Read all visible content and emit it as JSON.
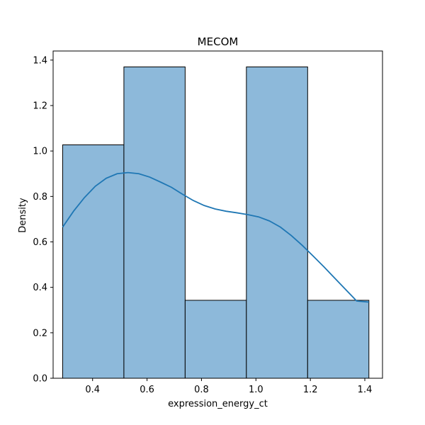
{
  "chart_data": {
    "type": "bar",
    "title": "MECOM",
    "xlabel": "expression_energy_ct",
    "ylabel": "Density",
    "xlim": [
      0.255,
      1.465
    ],
    "ylim": [
      0,
      1.44
    ],
    "x_ticks": [
      {
        "value": 0.4,
        "label": "0.4"
      },
      {
        "value": 0.6,
        "label": "0.6"
      },
      {
        "value": 0.8,
        "label": "0.8"
      },
      {
        "value": 1.0,
        "label": "1.0"
      },
      {
        "value": 1.2,
        "label": "1.2"
      },
      {
        "value": 1.4,
        "label": "1.4"
      }
    ],
    "y_ticks": [
      {
        "value": 0.0,
        "label": "0.0"
      },
      {
        "value": 0.2,
        "label": "0.2"
      },
      {
        "value": 0.4,
        "label": "0.4"
      },
      {
        "value": 0.6,
        "label": "0.6"
      },
      {
        "value": 0.8,
        "label": "0.8"
      },
      {
        "value": 1.0,
        "label": "1.0"
      },
      {
        "value": 1.2,
        "label": "1.2"
      },
      {
        "value": 1.4,
        "label": "1.4"
      }
    ],
    "bins": [
      {
        "x0": 0.29,
        "x1": 0.515,
        "value": 1.027
      },
      {
        "x0": 0.515,
        "x1": 0.74,
        "value": 1.37
      },
      {
        "x0": 0.74,
        "x1": 0.965,
        "value": 0.343
      },
      {
        "x0": 0.965,
        "x1": 1.19,
        "value": 1.37
      },
      {
        "x0": 1.19,
        "x1": 1.415,
        "value": 0.343
      }
    ],
    "kde": {
      "x": [
        0.29,
        0.33,
        0.37,
        0.41,
        0.45,
        0.49,
        0.53,
        0.57,
        0.61,
        0.65,
        0.69,
        0.73,
        0.77,
        0.81,
        0.85,
        0.89,
        0.93,
        0.97,
        1.01,
        1.05,
        1.09,
        1.13,
        1.17,
        1.21,
        1.25,
        1.29,
        1.33,
        1.37,
        1.415
      ],
      "y": [
        0.665,
        0.735,
        0.795,
        0.845,
        0.88,
        0.9,
        0.905,
        0.9,
        0.885,
        0.863,
        0.84,
        0.81,
        0.782,
        0.76,
        0.745,
        0.735,
        0.728,
        0.72,
        0.71,
        0.692,
        0.665,
        0.628,
        0.585,
        0.538,
        0.49,
        0.44,
        0.39,
        0.34,
        0.335
      ]
    },
    "bar_fill": "#8db9da",
    "bar_edge": "#000000",
    "kde_color": "#1f77b4",
    "grid": false,
    "legend": "none"
  }
}
